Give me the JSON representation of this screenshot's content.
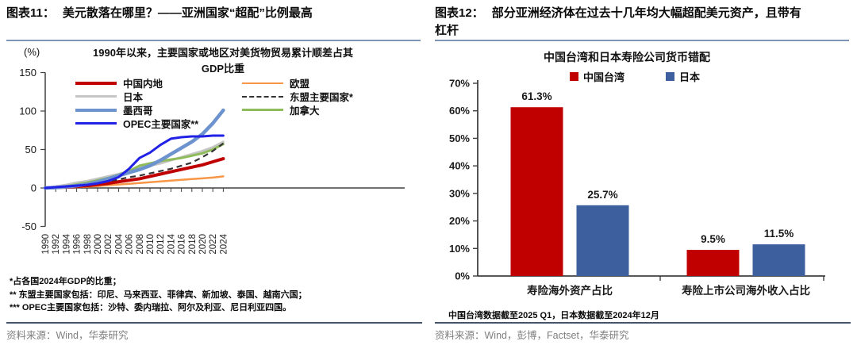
{
  "colors": {
    "header_divider": "#7E95B5",
    "source_divider": "#44546A",
    "axis": "#404040",
    "source_text": "#7F7F7F"
  },
  "left_panel": {
    "figure_label": "图表11：",
    "figure_title": "美元散落在哪里？——亚洲国家“超配”比例最高",
    "footnotes": [
      "*占各国2024年GDP的比重；",
      "** 东盟主要国家包括：印尼、马来西亚、菲律宾、新加坡、泰国、越南六国；",
      "*** OPEC主要国家包括：沙特、委内瑞拉、阿尔及利亚、尼日利亚四国。"
    ],
    "source": "资料来源：Wind，华泰研究"
  },
  "right_panel": {
    "figure_label": "图表12：",
    "figure_title": "部分亚洲经济体在过去十几年均大幅超配美元资产，且带有杠杆",
    "footnote": "中国台湾数据截至2025 Q1，日本数据截至2024年12月",
    "source": "资料来源：Wind，彭博，Factset，华泰研究"
  },
  "chart_data": [
    {
      "type": "line",
      "title": "1990年以来，主要国家或地区对美货物贸易累计顺差占其GDP比重",
      "xlabel": "",
      "ylabel": "(%)",
      "ylim": [
        -50,
        150
      ],
      "yticks": [
        150,
        100,
        50,
        0,
        -50
      ],
      "grid": false,
      "legend_position": "upper-left inside plot, two columns",
      "x": [
        1990,
        1992,
        1994,
        1996,
        1998,
        2000,
        2002,
        2004,
        2006,
        2008,
        2010,
        2012,
        2014,
        2016,
        2018,
        2020,
        2022,
        2024
      ],
      "series": [
        {
          "name": "中国内地",
          "color": "#C00000",
          "width": 4,
          "dash": null,
          "legend_column": 1,
          "values": [
            0,
            0.5,
            1,
            2,
            3,
            4.5,
            6,
            8,
            10,
            12,
            15,
            18,
            21,
            24,
            27,
            30,
            34,
            38
          ]
        },
        {
          "name": "日本",
          "color": "#C6C6C6",
          "width": 3,
          "dash": null,
          "legend_column": 1,
          "values": [
            0,
            2,
            4,
            7,
            9,
            12,
            15,
            18,
            22,
            26,
            29,
            32,
            36,
            40,
            44,
            48,
            53,
            60
          ]
        },
        {
          "name": "墨西哥",
          "color": "#6D93CE",
          "width": 4.5,
          "dash": null,
          "legend_column": 1,
          "values": [
            0,
            0.5,
            1.5,
            3,
            5,
            8,
            12,
            16,
            20,
            24,
            29,
            36,
            44,
            52,
            60,
            70,
            84,
            101
          ]
        },
        {
          "name": "OPEC主要国家**",
          "color": "#2222E6",
          "width": 3,
          "dash": null,
          "legend_column": 1,
          "values": [
            0,
            1,
            2,
            3,
            4,
            6,
            9,
            14,
            25,
            39,
            46,
            56,
            64,
            66,
            67,
            67,
            68,
            68
          ]
        },
        {
          "name": "欧盟",
          "color": "#F79646",
          "width": 2.5,
          "dash": null,
          "legend_column": 2,
          "values": [
            0,
            0.3,
            0.7,
            1,
            1.5,
            2.5,
            3.5,
            4.5,
            5.5,
            6.5,
            7.5,
            8.5,
            9.5,
            10.5,
            11.5,
            12.5,
            13.5,
            15
          ]
        },
        {
          "name": "东盟主要国家*",
          "color": "#333333",
          "width": 2.2,
          "dash": "7 5",
          "legend_column": 2,
          "values": [
            0,
            1,
            2,
            3.5,
            5,
            7,
            9,
            11,
            14,
            16,
            19,
            22,
            25,
            29,
            33,
            40,
            48,
            58
          ]
        },
        {
          "name": "加拿大",
          "color": "#8FBC5A",
          "width": 3,
          "dash": null,
          "legend_column": 2,
          "values": [
            0,
            1,
            2.5,
            4.5,
            7,
            10,
            13,
            17,
            22,
            29,
            32,
            35,
            37,
            39,
            42,
            45,
            50,
            57
          ]
        }
      ]
    },
    {
      "type": "bar",
      "title": "中国台湾和日本寿险公司货币错配",
      "categories": [
        "寿险海外资产占比",
        "寿险上市公司海外收入占比"
      ],
      "series": [
        {
          "name": "中国台湾",
          "color": "#C00000",
          "values": [
            61.3,
            9.5
          ],
          "labels": [
            "61.3%",
            "9.5%"
          ]
        },
        {
          "name": "日本",
          "color": "#3E5F9E",
          "values": [
            25.7,
            11.5
          ],
          "labels": [
            "25.7%",
            "11.5%"
          ]
        }
      ],
      "ylim": [
        0,
        70
      ],
      "yticks": [
        "0%",
        "10%",
        "20%",
        "30%",
        "40%",
        "50%",
        "60%",
        "70%"
      ],
      "grid": false,
      "legend_position": "top-center"
    }
  ]
}
